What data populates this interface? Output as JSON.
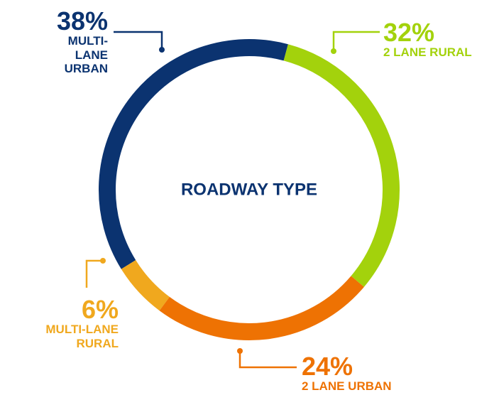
{
  "chart_data": {
    "type": "donut",
    "title": "ROADWAY TYPE",
    "categories": [
      "2 LANE RURAL",
      "2 LANE URBAN",
      "MULTI-LANE RURAL",
      "MULTI-LANE URBAN"
    ],
    "values": [
      32,
      24,
      6,
      38
    ],
    "value_labels": [
      "32%",
      "24%",
      "6%",
      "38%"
    ],
    "colors": [
      "#a3d20c",
      "#ee7203",
      "#f0a81e",
      "#0b3370"
    ]
  }
}
